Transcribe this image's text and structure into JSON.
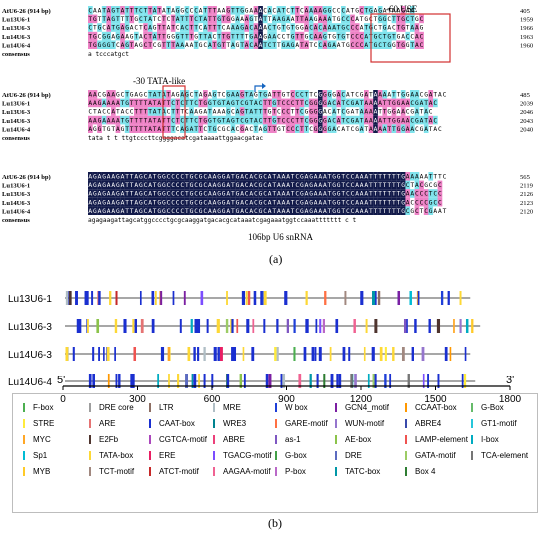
{
  "panel_a": {
    "blocks": [
      {
        "rows": [
          {
            "name": "AtU6-26 (914 bp)",
            "seq": "CAATAGTATTTCTTATATAGGCCCATTTAAGTTGGAAACACATCTTCAAAAGGCCCATGCTGAGATAAGAA",
            "end": "405"
          },
          {
            "name": "Lu13U6-1",
            "seq": "TGTTAGTTTTGCTATCTCTATTTCTATTGTGGAAAGTATTAAGAATTAAGAAATGCCCATGCTGGCTTGCTGC",
            "end": "1959"
          },
          {
            "name": "Lu13U6-3",
            "seq": "CTGCATGAGACTCAGTTATCACTTCATTTCAAAGACAAACTGTGTGGACACAAATGCCCATGCTGACTGTAAG",
            "end": "1966"
          },
          {
            "name": "Lu14U6-3",
            "seq": "TGCGGAGAAGTACTATTGGGTTTGTTACTTGTTTTGAAGAACCTGTTGCAAGTGTGTCCCATGCTGTGACCAC",
            "end": "1963"
          },
          {
            "name": "Lu14U6-4",
            "seq": "TGGGGTCAGTAGCTCGTTTAAAATGCATGTTAGTACAATCTTGAGATATCCAGAATGCCCATGCTGGTGGTAC",
            "end": "1960"
          }
        ],
        "consensus": "                              a              tcccatgct"
      },
      {
        "rows": [
          {
            "name": "AtU6-26 (914 bp)",
            "seq": "AACGAAGCTGAGCTATATAGAGCTAGAGTCGAAGTAGTGATTGTCCCTTCGGGGACATCGATAAAATTGGAACGATAC",
            "end": "485"
          },
          {
            "name": "Lu13U6-1",
            "seq": "AAGAAAATGTTTTATATTCTCTTCTGGTGTAGTCGTACTTGTCCCTTCGGGGACATCGATAAAATTGGAACGATAC",
            "end": "2039"
          },
          {
            "name": "Lu13U6-3",
            "seq": "CTACCATACCTTTTATACTTTCAAGATAAAGCAGTATTTGTCCCTTCGGGGACATCGATAAAATTGGAACGATAC",
            "end": "2046"
          },
          {
            "name": "Lu14U6-3",
            "seq": "AAGAAAATGTTTTATATTCTCTTCTGGTGTAGTCGTACTTGTCCCTTCGGGGACATCGATAAAATTGGAACGATAC",
            "end": "2043"
          },
          {
            "name": "Lu14U6-4",
            "seq": "AGGTGTAGTTTTTATATTTCAGATTCTGCGCACGACTAGTTGTCCCTTCGGGGACATCGATAAAATTGGAACGATAC",
            "end": "2040"
          }
        ],
        "consensus": "          tata        t        t  ttgtcccttcggggacatcgataaaattggaacgatac"
      },
      {
        "rows": [
          {
            "name": "AtU6-26 (914 bp)",
            "seq": "AGAGAAGATTAGCATGGCCCCTGCGCAAGGATGACACGCATAAATCGAGAAATGGTCCAAATTTTTTTGAAAAATTTC",
            "end": "565"
          },
          {
            "name": "Lu13U6-1",
            "seq": "AGAGAAGATTAGCATGGCCCCTGCGCAAGGATGACACGCATAAATCGAGAAATGGTCCAAATTTTTTTGCTACGCGC",
            "end": "2119"
          },
          {
            "name": "Lu13U6-3",
            "seq": "AGAGAAGATTAGCATGGCCCCTGCGCAAGGATGACACGCATAAATCGAGAAATGGTCCAAATTTTTTTGAACCCTCC",
            "end": "2126"
          },
          {
            "name": "Lu14U6-3",
            "seq": "AGAGAAGATTAGCATGGCCCCTGCGCAAGGATGACACGCATAAATCGAGAAATGGTCCAAATTTTTTTGACCCCGCC",
            "end": "2123"
          },
          {
            "name": "Lu14U6-4",
            "seq": "AGAGAAGATTAGCATGGCCCCTGCGCAAGGATGACACGCATAAATCGAGAAATGGTCCAAATTTTTTTGCGCTCGAAT",
            "end": "2120"
          }
        ],
        "consensus": "agagaagattagcatggcccctgcgcaaggatgacacgcataaatcgagaaatggtccaaattttttt  c  t"
      }
    ],
    "consensus_label": "consensus",
    "annotation_use": "-60 USE",
    "annotation_tata": "-30 TATA-like",
    "annotation_snrna": "106bp U6 snRNA",
    "label": "(a)"
  },
  "panel_b": {
    "label": "(b)",
    "tracks": [
      {
        "name": "Lu13U6-1",
        "length": 1640
      },
      {
        "name": "Lu13U6-3",
        "length": 1680
      },
      {
        "name": "Lu14U6-3",
        "length": 1640
      },
      {
        "name": "Lu14U6-4",
        "length": 1660
      }
    ],
    "axis": {
      "start_label": "5'",
      "end_label": "3'",
      "ticks": [
        "0",
        "300",
        "600",
        "900",
        "1200",
        "1500",
        "1800"
      ],
      "max": 1800
    },
    "legend": [
      {
        "name": "F-box",
        "color": "#4caf50"
      },
      {
        "name": "DRE core",
        "color": "#9e9e9e"
      },
      {
        "name": "LTR",
        "color": "#8d6e63"
      },
      {
        "name": "MRE",
        "color": "#b0bec5"
      },
      {
        "name": "W box",
        "color": "#1e3fd8"
      },
      {
        "name": "GCN4_motif",
        "color": "#7b1fa2"
      },
      {
        "name": "CCAAT-box",
        "color": "#ff9800"
      },
      {
        "name": "G-Box",
        "color": "#66bb6a"
      },
      {
        "name": "STRE",
        "color": "#ffeb3b"
      },
      {
        "name": "ARE",
        "color": "#e57373"
      },
      {
        "name": "CAAT-box",
        "color": "#1a2fd0"
      },
      {
        "name": "WRE3",
        "color": "#00838f"
      },
      {
        "name": "GARE-motif",
        "color": "#ff7043"
      },
      {
        "name": "WUN-motif",
        "color": "#9575cd"
      },
      {
        "name": "ABRE4",
        "color": "#3949ab"
      },
      {
        "name": "GT1-motif",
        "color": "#26c6da"
      },
      {
        "name": "MYC",
        "color": "#ffa726"
      },
      {
        "name": "E2Fb",
        "color": "#4e342e"
      },
      {
        "name": "CGTCA-motif",
        "color": "#ab47bc"
      },
      {
        "name": "ABRE",
        "color": "#ec407a"
      },
      {
        "name": "as-1",
        "color": "#7e57c2"
      },
      {
        "name": "AE-box",
        "color": "#8bc34a"
      },
      {
        "name": "LAMP-element",
        "color": "#ef5350"
      },
      {
        "name": "I-box",
        "color": "#00acc1"
      },
      {
        "name": "Sp1",
        "color": "#00bcd4"
      },
      {
        "name": "TATA-box",
        "color": "#fdd835"
      },
      {
        "name": "ERE",
        "color": "#e91e63"
      },
      {
        "name": "TGACG-motif",
        "color": "#7c4dff"
      },
      {
        "name": "G-box",
        "color": "#43a047"
      },
      {
        "name": "DRE",
        "color": "#5c6bc0"
      },
      {
        "name": "GATA-motif",
        "color": "#9ccc65"
      },
      {
        "name": "TCA-element",
        "color": "#757575"
      },
      {
        "name": "MYB",
        "color": "#ffca28"
      },
      {
        "name": "TCT-motif",
        "color": "#a1887f"
      },
      {
        "name": "ATCT-motif",
        "color": "#c62828"
      },
      {
        "name": "AAGAA-motif",
        "color": "#f06292"
      },
      {
        "name": "P-box",
        "color": "#ba68c8"
      },
      {
        "name": "TATC-box",
        "color": "#0097a7"
      },
      {
        "name": "Box 4",
        "color": "#2e7d32"
      }
    ]
  }
}
